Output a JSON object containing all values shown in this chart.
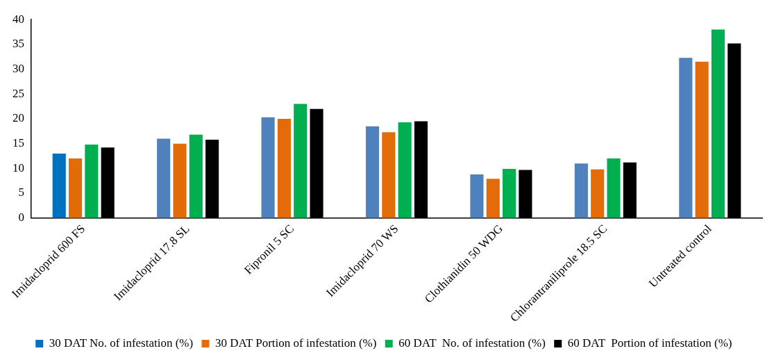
{
  "chart_data": {
    "type": "bar",
    "categories": [
      "Imidacloprid 600 FS",
      "Imidacloprid 17.8 SL",
      "Fipronil 5 SC",
      "Imidacloprid 70 WS",
      "Clothianidin 50 WDG",
      "Chlorantraniliprole 18.5 SC",
      "Untreated control"
    ],
    "series": [
      {
        "name": "30 DAT No. of infestation (%)",
        "color": "#4f81bd",
        "colors": [
          "#0070c0",
          "#4f81bd",
          "#4f81bd",
          "#4f81bd",
          "#4f81bd",
          "#4f81bd",
          "#4f81bd"
        ],
        "values": [
          13,
          16,
          20.3,
          18.5,
          8.8,
          11,
          32.3
        ]
      },
      {
        "name": "30 DAT Portion of infestation (%)",
        "color": "#e36c0a",
        "values": [
          12,
          15,
          20,
          17.3,
          7.9,
          9.8,
          31.5
        ]
      },
      {
        "name": "60 DAT  No. of infestation (%)",
        "color": "#00b050",
        "values": [
          14.8,
          16.8,
          23,
          19.3,
          9.9,
          12,
          38
        ]
      },
      {
        "name": "60 DAT  Portion of infestation (%)",
        "color": "#000000",
        "values": [
          14.2,
          15.8,
          22,
          19.5,
          9.7,
          11.2,
          35.2
        ]
      }
    ],
    "ylim": [
      0,
      40
    ],
    "yticks": [
      0,
      5,
      10,
      15,
      20,
      25,
      30,
      35,
      40
    ],
    "grid": false,
    "legend": "bottom"
  }
}
